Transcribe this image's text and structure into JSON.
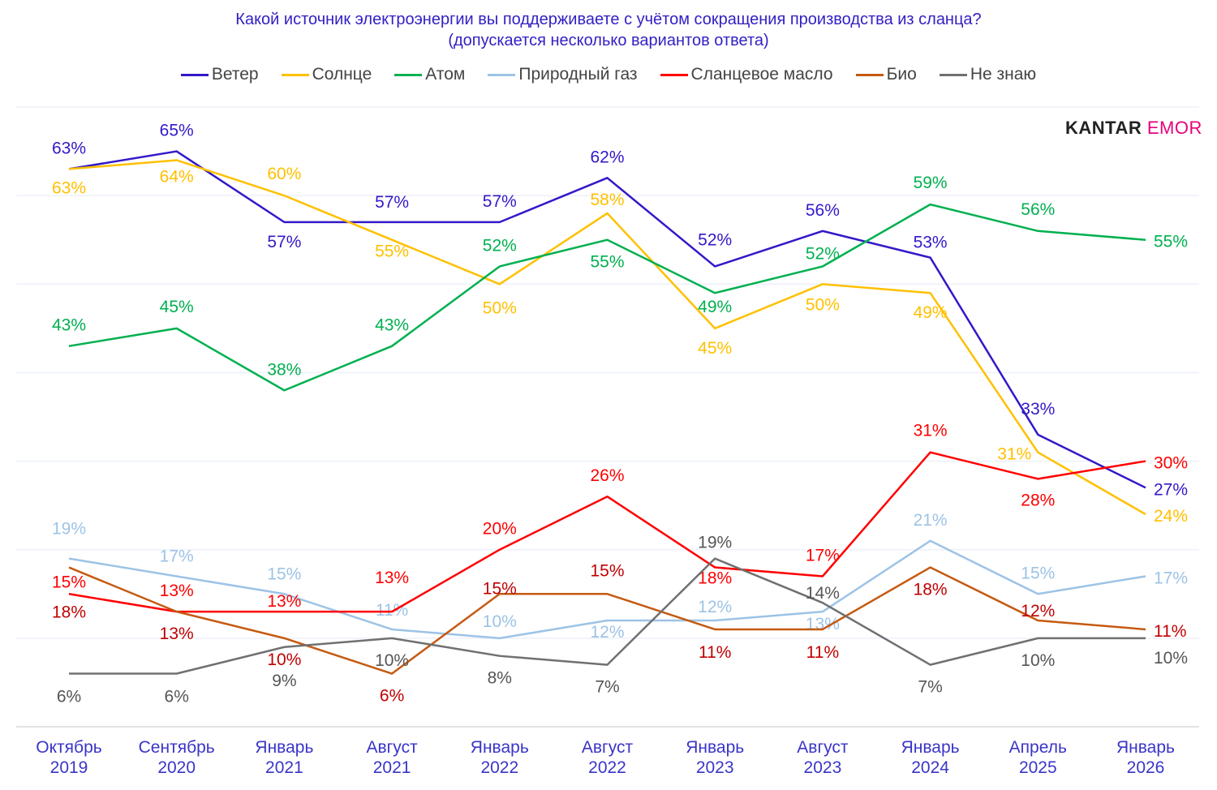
{
  "chart_data": {
    "type": "line",
    "title": "Какой источник электроэнергии вы поддерживаете с учётом сокращения производства из сланца?",
    "subtitle": "(допускается несколько вариантов ответа)",
    "categories": [
      [
        "Октябрь",
        "2019"
      ],
      [
        "Сентябрь",
        "2020"
      ],
      [
        "Январь",
        "2021"
      ],
      [
        "Август",
        "2021"
      ],
      [
        "Январь",
        "2022"
      ],
      [
        "Август",
        "2022"
      ],
      [
        "Январь",
        "2023"
      ],
      [
        "Август",
        "2023"
      ],
      [
        "Январь",
        "2024"
      ],
      [
        "Апрель",
        "2025"
      ],
      [
        "Январь",
        "2026"
      ]
    ],
    "ylim": [
      0,
      70
    ],
    "grid": true,
    "legend_position": "top",
    "value_suffix": "%",
    "series": [
      {
        "name": "Ветер",
        "color": "#3219c8",
        "values": [
          63,
          65,
          57,
          57,
          57,
          62,
          52,
          56,
          53,
          33,
          27
        ]
      },
      {
        "name": "Солнце",
        "color": "#ffc000",
        "values": [
          63,
          64,
          60,
          55,
          50,
          58,
          45,
          50,
          49,
          31,
          24
        ]
      },
      {
        "name": "Атом",
        "color": "#00b050",
        "values": [
          43,
          45,
          38,
          43,
          52,
          55,
          49,
          52,
          59,
          56,
          55
        ]
      },
      {
        "name": "Природный газ",
        "color": "#9dc3e6",
        "values": [
          19,
          17,
          15,
          11,
          10,
          12,
          12,
          13,
          21,
          15,
          17
        ]
      },
      {
        "name": "Сланцевое масло",
        "color": "#ff0000",
        "values": [
          15,
          13,
          13,
          13,
          20,
          26,
          18,
          17,
          31,
          28,
          30
        ]
      },
      {
        "name": "Био",
        "color": "#c55a11",
        "label_color": "#c00000",
        "values": [
          18,
          13,
          10,
          6,
          15,
          15,
          11,
          11,
          18,
          12,
          11
        ]
      },
      {
        "name": "Не знаю",
        "color": "#707070",
        "label_color": "#555555",
        "values": [
          6,
          6,
          9,
          10,
          8,
          7,
          19,
          14,
          7,
          10,
          10
        ]
      }
    ]
  },
  "logo": {
    "part1": "KANTAR",
    "part2": "EMOR"
  }
}
